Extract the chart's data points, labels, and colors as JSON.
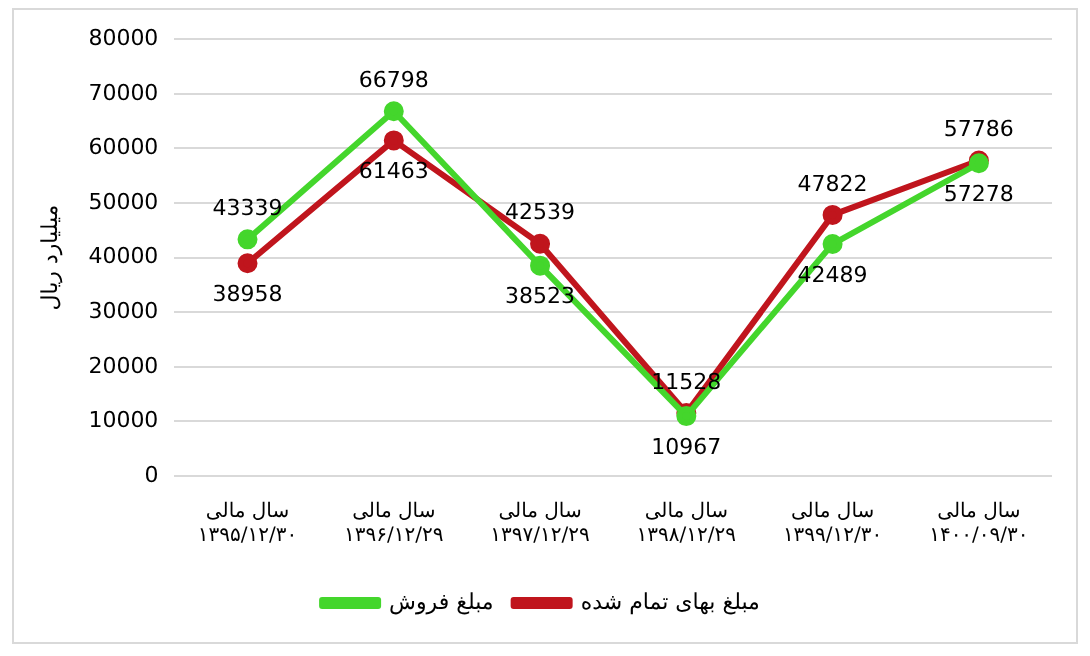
{
  "chart_data": {
    "type": "line",
    "ylabel": "میلیارد ریال",
    "categories": [
      "سال مالی\n۱۳۹۵/۱۲/۳۰",
      "سال مالی\n۱۳۹۶/۱۲/۲۹",
      "سال مالی\n۱۳۹۷/۱۲/۲۹",
      "سال مالی\n۱۳۹۸/۱۲/۲۹",
      "سال مالی\n۱۳۹۹/۱۲/۳۰",
      "سال مالی\n۱۴۰۰/۰۹/۳۰"
    ],
    "series": [
      {
        "name": "مبلغ فروش",
        "color": "#44d62c",
        "values": [
          43339,
          66798,
          38523,
          10967,
          42489,
          57278
        ]
      },
      {
        "name": "مبلغ بهای تمام شده",
        "color": "#c0151d",
        "values": [
          38958,
          61463,
          42539,
          11528,
          47822,
          57786
        ]
      }
    ],
    "ylim": [
      0,
      80000
    ],
    "yticks": [
      0,
      10000,
      20000,
      30000,
      40000,
      50000,
      60000,
      70000,
      80000
    ],
    "grid": "y",
    "legend": "bottom",
    "marker": "circle",
    "data_labels": true
  }
}
